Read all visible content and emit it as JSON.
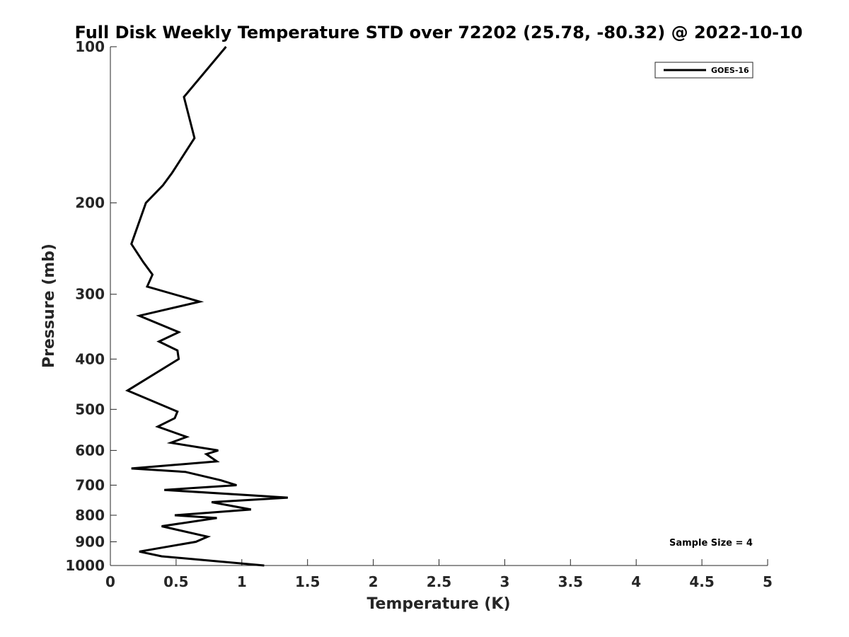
{
  "chart_data": {
    "type": "line",
    "title": "Full Disk Weekly Temperature STD over 72202 (25.78, -80.32) @ 2022-10-10",
    "xlabel": "Temperature (K)",
    "ylabel": "Pressure (mb)",
    "xlim": [
      0,
      5
    ],
    "ylim": [
      100,
      1000
    ],
    "y_scale": "log",
    "y_reversed": true,
    "grid": false,
    "x_ticks": [
      "0",
      "0.5",
      "1",
      "1.5",
      "2",
      "2.5",
      "3",
      "3.5",
      "4",
      "4.5",
      "5"
    ],
    "y_ticks": [
      "100",
      "200",
      "300",
      "400",
      "500",
      "600",
      "700",
      "800",
      "900",
      "1000"
    ],
    "legend": {
      "placement": "top-right",
      "entries": [
        "GOES-16"
      ]
    },
    "annotation": "Sample Size = 4",
    "series": [
      {
        "name": "GOES-16",
        "color": "#000000",
        "x": [
          0.88,
          0.56,
          0.64,
          0.47,
          0.4,
          0.27,
          0.16,
          0.25,
          0.32,
          0.28,
          0.68,
          0.22,
          0.52,
          0.37,
          0.51,
          0.52,
          0.13,
          0.51,
          0.49,
          0.36,
          0.58,
          0.46,
          0.82,
          0.73,
          0.81,
          0.16,
          0.57,
          0.84,
          0.96,
          0.41,
          1.35,
          0.77,
          1.07,
          0.49,
          0.81,
          0.39,
          0.74,
          0.65,
          0.22,
          0.39,
          1.17
        ],
        "y": [
          100,
          125,
          150,
          175,
          185,
          200,
          240,
          260,
          275,
          290,
          310,
          330,
          355,
          370,
          385,
          400,
          460,
          505,
          520,
          540,
          565,
          580,
          600,
          610,
          630,
          650,
          660,
          685,
          700,
          715,
          740,
          755,
          780,
          800,
          810,
          840,
          880,
          900,
          940,
          960,
          1000
        ]
      }
    ]
  }
}
